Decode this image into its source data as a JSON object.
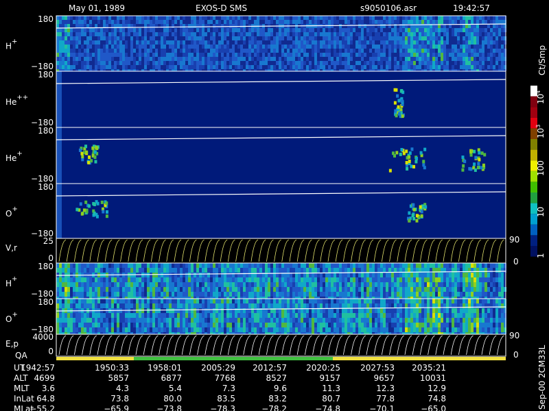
{
  "header": {
    "date": "May 01, 1989",
    "instrument": "EXOS-D SMS",
    "file": "s9050106.asr",
    "time": "19:42:57"
  },
  "panels": [
    {
      "label": "H",
      "charge": "+",
      "top_tick": "180",
      "bottom_tick": "−180"
    },
    {
      "label": "He",
      "charge": "++",
      "top_tick": "180",
      "bottom_tick": "−180"
    },
    {
      "label": "He",
      "charge": "+",
      "top_tick": "180",
      "bottom_tick": "−180"
    },
    {
      "label": "O",
      "charge": "+",
      "top_tick": "180",
      "bottom_tick": "−180"
    },
    {
      "label": "H",
      "charge": "+",
      "top_tick": "180",
      "bottom_tick": "−180"
    },
    {
      "label": "O",
      "charge": "+",
      "top_tick": "180",
      "bottom_tick": "−180"
    }
  ],
  "line_panels": [
    {
      "label": "V,r",
      "left_top": "25",
      "left_bottom": "0",
      "right_top": "90",
      "right_bottom": "0"
    },
    {
      "label": "E,p",
      "left_top": "4000",
      "left_bottom": "0",
      "right_top": "90",
      "right_bottom": "0"
    }
  ],
  "qa_label": "QA",
  "colorbar": {
    "unit": "Ct/Smp",
    "ticks": [
      {
        "base": "10",
        "exp": "4"
      },
      {
        "base": "10",
        "exp": "3"
      },
      {
        "base": "100",
        "exp": ""
      },
      {
        "base": "10",
        "exp": ""
      },
      {
        "base": "1",
        "exp": ""
      }
    ]
  },
  "side_note": "Sep-00 2CM33L",
  "ephemeris": [
    {
      "name": "UT",
      "values": [
        "1942:57",
        "1950:33",
        "1958:01",
        "2005:29",
        "2012:57",
        "2020:25",
        "2027:53",
        "2035:21"
      ]
    },
    {
      "name": "ALT",
      "values": [
        "4699",
        "5857",
        "6877",
        "7768",
        "8527",
        "9157",
        "9657",
        "10031"
      ]
    },
    {
      "name": "MLT",
      "values": [
        "3.6",
        "4.3",
        "5.4",
        "7.3",
        "9.6",
        "11.3",
        "12.3",
        "12.9"
      ]
    },
    {
      "name": "InLat",
      "values": [
        "64.8",
        "73.8",
        "80.0",
        "83.5",
        "83.2",
        "80.7",
        "77.8",
        "74.8"
      ]
    },
    {
      "name": "MLat",
      "values": [
        "−55.2",
        "−65.9",
        "−73.8",
        "−78.3",
        "−78.2",
        "−74.8",
        "−70.1",
        "−65.0"
      ]
    }
  ]
}
